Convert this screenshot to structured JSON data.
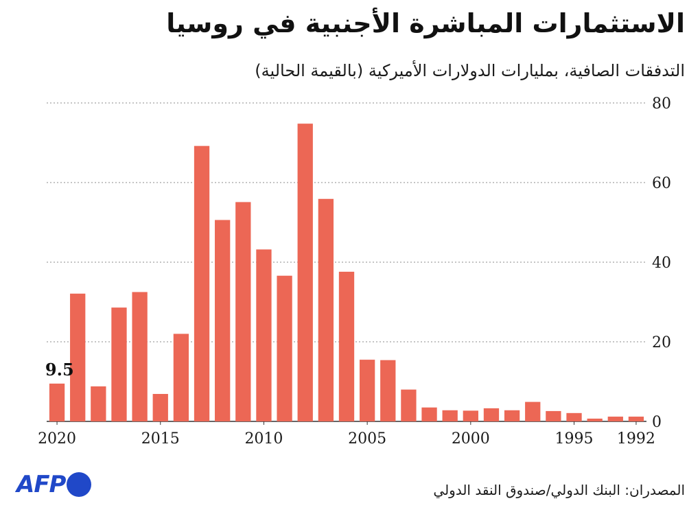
{
  "title": "الاستثمارات المباشرة الأجنبية في روسيا",
  "subtitle": "التدفقات الصافية، بمليارات الدولارات الأميركية (بالقيمة الحالية)",
  "source": "المصدران: البنك الدولي/صندوق النقد الدولي",
  "logo_text": "AFP",
  "colors": {
    "bar": "#ec6755",
    "grid": "#888888",
    "logo": "#2048c8"
  },
  "chart_data": {
    "type": "bar",
    "title": "الاستثمارات المباشرة الأجنبية في روسيا",
    "subtitle": "التدفقات الصافية، بمليارات الدولارات الأميركية (بالقيمة الحالية)",
    "xlabel": "",
    "ylabel": "",
    "x_direction": "reversed",
    "y_axis_side": "right",
    "grid": true,
    "ylim": [
      0,
      80
    ],
    "yticks": [
      0,
      20,
      40,
      60,
      80
    ],
    "xticks": [
      "2020",
      "2015",
      "2010",
      "2005",
      "2000",
      "1995",
      "1992"
    ],
    "categories": [
      "2020",
      "2019",
      "2018",
      "2017",
      "2016",
      "2015",
      "2014",
      "2013",
      "2012",
      "2011",
      "2010",
      "2009",
      "2008",
      "2007",
      "2006",
      "2005",
      "2004",
      "2003",
      "2002",
      "2001",
      "2000",
      "1999",
      "1998",
      "1997",
      "1996",
      "1995",
      "1994",
      "1993",
      "1992"
    ],
    "values": [
      9.5,
      32.1,
      8.8,
      28.6,
      32.5,
      6.9,
      22.0,
      69.2,
      50.6,
      55.1,
      43.2,
      36.6,
      74.8,
      55.9,
      37.6,
      15.5,
      15.4,
      8.0,
      3.5,
      2.8,
      2.7,
      3.3,
      2.8,
      4.9,
      2.6,
      2.1,
      0.7,
      1.2,
      1.2
    ],
    "annotations": [
      {
        "category": "2020",
        "text": "9.5"
      }
    ]
  }
}
